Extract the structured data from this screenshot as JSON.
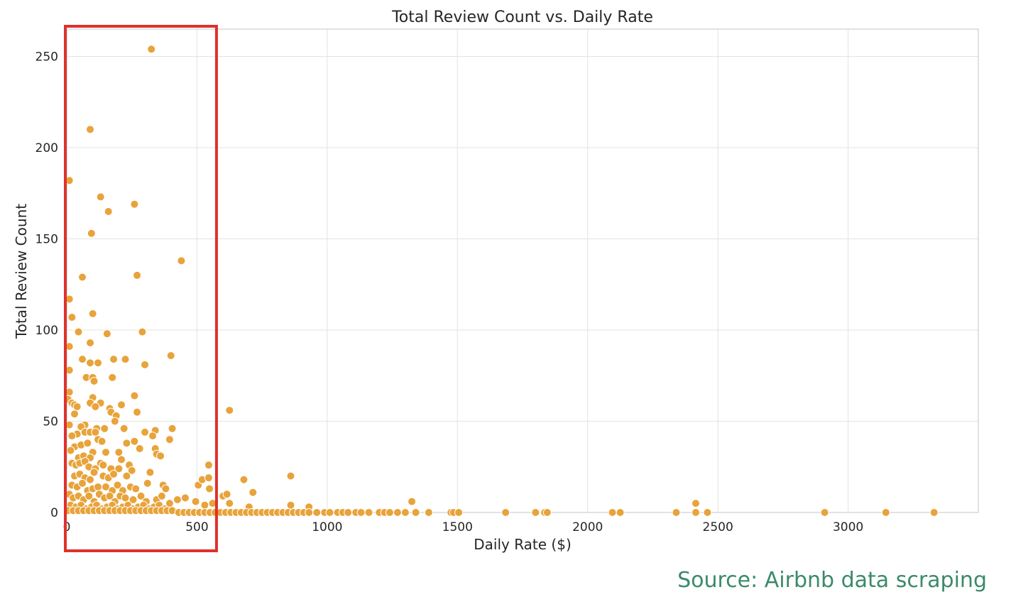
{
  "colors": {
    "point": "#E8A33A",
    "highlight_box": "#E0302B",
    "source_text": "#3B8A6A",
    "grid": "#E3E3E3"
  },
  "source": "Source: Airbnb data scraping",
  "highlight": {
    "x_range": [
      0,
      575
    ],
    "description_value_range": "0-575"
  },
  "chart_data": {
    "type": "scatter",
    "title": "Total Review Count vs. Daily Rate",
    "xlabel": "Daily Rate ($)",
    "ylabel": "Total Review Count",
    "xlim": [
      0,
      3500
    ],
    "ylim": [
      0,
      265
    ],
    "xticks": [
      0,
      500,
      1000,
      1500,
      2000,
      2500,
      3000
    ],
    "yticks": [
      0,
      50,
      100,
      150,
      200,
      250
    ],
    "grid": true,
    "points": [
      [
        325,
        254
      ],
      [
        90,
        210
      ],
      [
        10,
        182
      ],
      [
        130,
        173
      ],
      [
        260,
        169
      ],
      [
        160,
        165
      ],
      [
        95,
        153
      ],
      [
        440,
        138
      ],
      [
        270,
        130
      ],
      [
        60,
        129
      ],
      [
        10,
        117
      ],
      [
        20,
        107
      ],
      [
        100,
        109
      ],
      [
        45,
        99
      ],
      [
        290,
        99
      ],
      [
        155,
        98
      ],
      [
        10,
        91
      ],
      [
        90,
        93
      ],
      [
        400,
        86
      ],
      [
        60,
        84
      ],
      [
        180,
        84
      ],
      [
        225,
        84
      ],
      [
        90,
        82
      ],
      [
        120,
        82
      ],
      [
        300,
        81
      ],
      [
        10,
        78
      ],
      [
        75,
        74
      ],
      [
        100,
        74
      ],
      [
        175,
        74
      ],
      [
        105,
        72
      ],
      [
        10,
        66
      ],
      [
        5,
        62
      ],
      [
        20,
        60
      ],
      [
        30,
        59
      ],
      [
        40,
        58
      ],
      [
        100,
        63
      ],
      [
        90,
        60
      ],
      [
        130,
        60
      ],
      [
        210,
        59
      ],
      [
        260,
        64
      ],
      [
        165,
        57
      ],
      [
        110,
        58
      ],
      [
        170,
        55
      ],
      [
        190,
        53
      ],
      [
        30,
        54
      ],
      [
        10,
        48
      ],
      [
        70,
        48
      ],
      [
        55,
        47
      ],
      [
        115,
        46
      ],
      [
        145,
        46
      ],
      [
        185,
        50
      ],
      [
        270,
        55
      ],
      [
        220,
        46
      ],
      [
        300,
        44
      ],
      [
        340,
        45
      ],
      [
        405,
        46
      ],
      [
        330,
        42
      ],
      [
        395,
        40
      ],
      [
        40,
        43
      ],
      [
        20,
        42
      ],
      [
        70,
        44
      ],
      [
        90,
        44
      ],
      [
        110,
        44
      ],
      [
        120,
        40
      ],
      [
        135,
        39
      ],
      [
        30,
        36
      ],
      [
        55,
        37
      ],
      [
        80,
        38
      ],
      [
        100,
        33
      ],
      [
        15,
        34
      ],
      [
        45,
        30
      ],
      [
        65,
        31
      ],
      [
        90,
        30
      ],
      [
        150,
        33
      ],
      [
        200,
        33
      ],
      [
        230,
        38
      ],
      [
        260,
        39
      ],
      [
        280,
        35
      ],
      [
        340,
        35
      ],
      [
        345,
        32
      ],
      [
        360,
        31
      ],
      [
        20,
        27
      ],
      [
        35,
        26
      ],
      [
        50,
        27
      ],
      [
        70,
        28
      ],
      [
        85,
        25
      ],
      [
        110,
        24
      ],
      [
        130,
        27
      ],
      [
        140,
        26
      ],
      [
        170,
        24
      ],
      [
        200,
        24
      ],
      [
        210,
        29
      ],
      [
        240,
        26
      ],
      [
        250,
        23
      ],
      [
        30,
        20
      ],
      [
        50,
        21
      ],
      [
        70,
        19
      ],
      [
        90,
        18
      ],
      [
        105,
        22
      ],
      [
        140,
        20
      ],
      [
        160,
        19
      ],
      [
        180,
        21
      ],
      [
        230,
        20
      ],
      [
        20,
        15
      ],
      [
        40,
        14
      ],
      [
        60,
        16
      ],
      [
        80,
        12
      ],
      [
        100,
        13
      ],
      [
        120,
        14
      ],
      [
        150,
        14
      ],
      [
        175,
        12
      ],
      [
        195,
        15
      ],
      [
        215,
        12
      ],
      [
        245,
        14
      ],
      [
        265,
        13
      ],
      [
        310,
        16
      ],
      [
        320,
        22
      ],
      [
        370,
        15
      ],
      [
        380,
        13
      ],
      [
        10,
        10
      ],
      [
        25,
        8
      ],
      [
        45,
        9
      ],
      [
        65,
        7
      ],
      [
        85,
        9
      ],
      [
        105,
        6
      ],
      [
        125,
        10
      ],
      [
        145,
        8
      ],
      [
        165,
        9
      ],
      [
        185,
        6
      ],
      [
        205,
        9
      ],
      [
        225,
        8
      ],
      [
        255,
        7
      ],
      [
        285,
        9
      ],
      [
        305,
        6
      ],
      [
        345,
        7
      ],
      [
        365,
        9
      ],
      [
        395,
        5
      ],
      [
        425,
        7
      ],
      [
        455,
        8
      ],
      [
        15,
        4
      ],
      [
        35,
        3
      ],
      [
        55,
        4
      ],
      [
        75,
        2
      ],
      [
        95,
        3
      ],
      [
        115,
        4
      ],
      [
        135,
        2
      ],
      [
        155,
        3
      ],
      [
        175,
        4
      ],
      [
        195,
        2
      ],
      [
        215,
        3
      ],
      [
        235,
        4
      ],
      [
        255,
        2
      ],
      [
        275,
        3
      ],
      [
        295,
        4
      ],
      [
        315,
        2
      ],
      [
        335,
        3
      ],
      [
        355,
        4
      ],
      [
        375,
        2
      ],
      [
        505,
        15
      ],
      [
        520,
        18
      ],
      [
        545,
        19
      ],
      [
        548,
        13
      ],
      [
        545,
        26
      ],
      [
        495,
        6
      ],
      [
        530,
        4
      ],
      [
        560,
        5
      ],
      [
        600,
        9
      ],
      [
        615,
        10
      ],
      [
        625,
        56
      ],
      [
        625,
        5
      ],
      [
        680,
        18
      ],
      [
        700,
        3
      ],
      [
        715,
        11
      ],
      [
        860,
        20
      ],
      [
        860,
        4
      ],
      [
        930,
        3
      ],
      [
        1325,
        6
      ],
      [
        2415,
        5
      ],
      [
        5,
        1
      ],
      [
        25,
        1
      ],
      [
        45,
        1
      ],
      [
        65,
        1
      ],
      [
        85,
        1
      ],
      [
        105,
        1
      ],
      [
        125,
        1
      ],
      [
        145,
        1
      ],
      [
        165,
        1
      ],
      [
        185,
        1
      ],
      [
        205,
        1
      ],
      [
        225,
        1
      ],
      [
        245,
        1
      ],
      [
        265,
        1
      ],
      [
        285,
        1
      ],
      [
        305,
        1
      ],
      [
        325,
        1
      ],
      [
        345,
        1
      ],
      [
        365,
        1
      ],
      [
        385,
        1
      ],
      [
        405,
        1
      ],
      [
        430,
        0
      ],
      [
        450,
        0
      ],
      [
        470,
        0
      ],
      [
        490,
        0
      ],
      [
        510,
        0
      ],
      [
        530,
        0
      ],
      [
        550,
        0
      ],
      [
        570,
        0
      ],
      [
        590,
        0
      ],
      [
        610,
        0
      ],
      [
        630,
        0
      ],
      [
        650,
        0
      ],
      [
        670,
        0
      ],
      [
        690,
        0
      ],
      [
        710,
        0
      ],
      [
        730,
        0
      ],
      [
        750,
        0
      ],
      [
        770,
        0
      ],
      [
        790,
        0
      ],
      [
        810,
        0
      ],
      [
        830,
        0
      ],
      [
        850,
        0
      ],
      [
        870,
        0
      ],
      [
        890,
        0
      ],
      [
        910,
        0
      ],
      [
        930,
        0
      ],
      [
        960,
        0
      ],
      [
        990,
        0
      ],
      [
        1010,
        0
      ],
      [
        1040,
        0
      ],
      [
        1060,
        0
      ],
      [
        1080,
        0
      ],
      [
        1110,
        0
      ],
      [
        1130,
        0
      ],
      [
        1160,
        0
      ],
      [
        1200,
        0
      ],
      [
        1220,
        0
      ],
      [
        1240,
        0
      ],
      [
        1270,
        0
      ],
      [
        1300,
        0
      ],
      [
        1340,
        0
      ],
      [
        1390,
        0
      ],
      [
        1475,
        0
      ],
      [
        1485,
        0
      ],
      [
        1505,
        0
      ],
      [
        1685,
        0
      ],
      [
        1800,
        0
      ],
      [
        1835,
        0
      ],
      [
        1845,
        0
      ],
      [
        2095,
        0
      ],
      [
        2125,
        0
      ],
      [
        2340,
        0
      ],
      [
        2415,
        0
      ],
      [
        2460,
        0
      ],
      [
        2910,
        0
      ],
      [
        3145,
        0
      ],
      [
        3330,
        0
      ]
    ]
  }
}
